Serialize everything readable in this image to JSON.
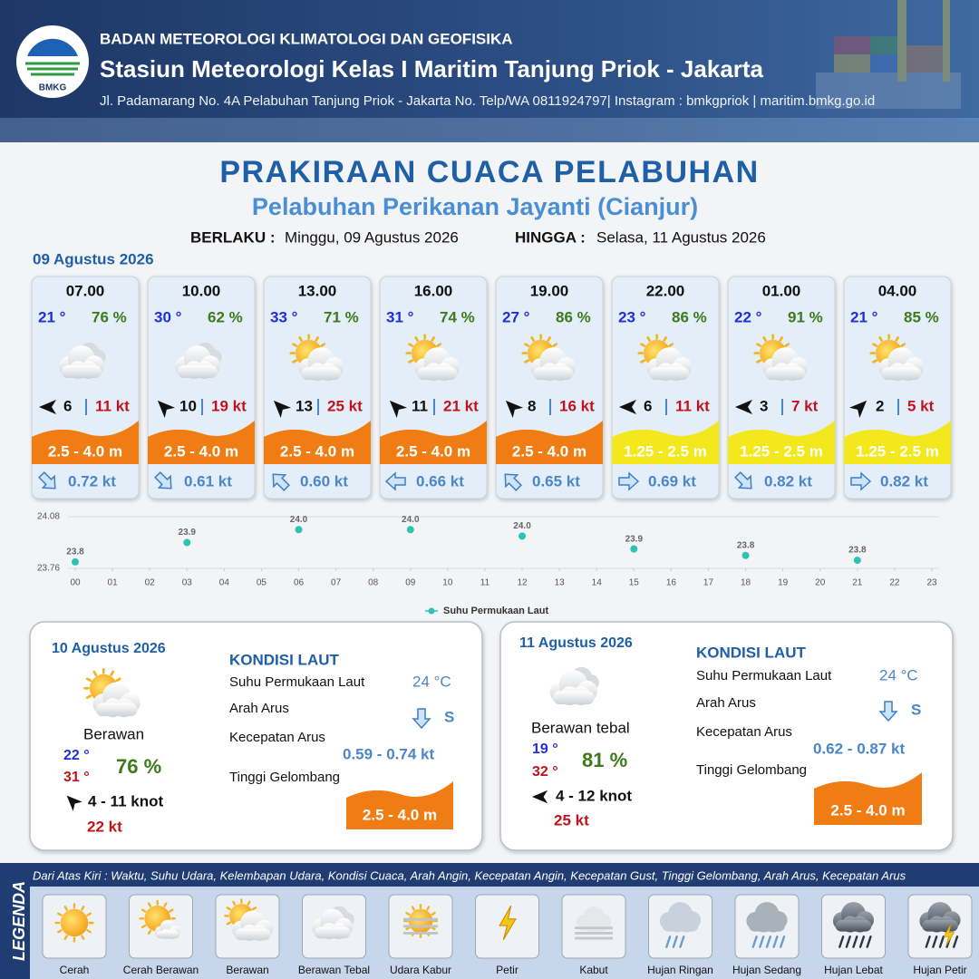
{
  "header": {
    "agency": "BADAN METEOROLOGI KLIMATOLOGI DAN GEOFISIKA",
    "station": "Stasiun Meteorologi Kelas I Maritim Tanjung Priok - Jakarta",
    "address": "Jl. Padamarang No. 4A Pelabuhan Tanjung Priok - Jakarta No. Telp/WA 0811924797| Instagram : bmkgpriok | maritim.bmkg.go.id",
    "logo_text": "BMKG"
  },
  "title": "PRAKIRAAN CUACA PELABUHAN",
  "subtitle": "Pelabuhan Perikanan Jayanti (Cianjur)",
  "valid_from_label": "BERLAKU :",
  "valid_from": "Minggu, 09 Agustus 2026",
  "valid_to_label": "HINGGA :",
  "valid_to": "Selasa, 11 Agustus 2026",
  "date": "09 Agustus 2026",
  "forecasts": [
    {
      "time": "07.00",
      "temp": "21 °",
      "humidity": "76 %",
      "condition": "Berawan Tebal",
      "wind": 6,
      "wind_arrow_deg": 270,
      "gust": "11 kt",
      "wave": "2.5 - 4.0 m",
      "wave_color": "#f07d13",
      "current": "0.72 kt",
      "current_arrow_deg": 135
    },
    {
      "time": "10.00",
      "temp": "30 °",
      "humidity": "62 %",
      "condition": "Berawan Tebal",
      "wind": 10,
      "wind_arrow_deg": 315,
      "gust": "19 kt",
      "wave": "2.5 - 4.0 m",
      "wave_color": "#f07d13",
      "current": "0.61 kt",
      "current_arrow_deg": 135
    },
    {
      "time": "13.00",
      "temp": "33 °",
      "humidity": "71 %",
      "condition": "Berawan",
      "wind": 13,
      "wind_arrow_deg": 315,
      "gust": "25 kt",
      "wave": "2.5 - 4.0 m",
      "wave_color": "#f07d13",
      "current": "0.60 kt",
      "current_arrow_deg": 315
    },
    {
      "time": "16.00",
      "temp": "31 °",
      "humidity": "74 %",
      "condition": "Berawan",
      "wind": 11,
      "wind_arrow_deg": 315,
      "gust": "21 kt",
      "wave": "2.5 - 4.0 m",
      "wave_color": "#f07d13",
      "current": "0.66 kt",
      "current_arrow_deg": 270
    },
    {
      "time": "19.00",
      "temp": "27 °",
      "humidity": "86 %",
      "condition": "Berawan",
      "wind": 8,
      "wind_arrow_deg": 315,
      "gust": "16 kt",
      "wave": "2.5 - 4.0 m",
      "wave_color": "#f07d13",
      "current": "0.65 kt",
      "current_arrow_deg": 315
    },
    {
      "time": "22.00",
      "temp": "23 °",
      "humidity": "86 %",
      "condition": "Berawan",
      "wind": 6,
      "wind_arrow_deg": 270,
      "gust": "11 kt",
      "wave": "1.25 - 2.5 m",
      "wave_color": "#f2e81c",
      "current": "0.69 kt",
      "current_arrow_deg": 90
    },
    {
      "time": "01.00",
      "temp": "22 °",
      "humidity": "91 %",
      "condition": "Berawan",
      "wind": 3,
      "wind_arrow_deg": 270,
      "gust": "7 kt",
      "wave": "1.25 - 2.5 m",
      "wave_color": "#f2e81c",
      "current": "0.82 kt",
      "current_arrow_deg": 135
    },
    {
      "time": "04.00",
      "temp": "21 °",
      "humidity": "85 %",
      "condition": "Berawan",
      "wind": 2,
      "wind_arrow_deg": 45,
      "gust": "5 kt",
      "wave": "1.25 - 2.5 m",
      "wave_color": "#f2e81c",
      "current": "0.82 kt",
      "current_arrow_deg": 90
    }
  ],
  "chart_data": {
    "type": "scatter",
    "xlim": [
      0,
      23
    ],
    "xticks": [
      {
        "value": 0,
        "label": "00"
      },
      {
        "value": 1,
        "label": "01"
      },
      {
        "value": 2,
        "label": "02"
      },
      {
        "value": 3,
        "label": "03"
      },
      {
        "value": 4,
        "label": "04"
      },
      {
        "value": 5,
        "label": "05"
      },
      {
        "value": 6,
        "label": "06"
      },
      {
        "value": 7,
        "label": "07"
      },
      {
        "value": 8,
        "label": "08"
      },
      {
        "value": 9,
        "label": "09"
      },
      10,
      11,
      12,
      13,
      14,
      15,
      16,
      17,
      18,
      19,
      20,
      21,
      22,
      23
    ],
    "ylim": [
      23.76,
      24.08
    ],
    "yticks": [
      23.76,
      24.08
    ],
    "grid": true,
    "legend": "bottom",
    "series": [
      {
        "name": "Suhu Permukaan Laut",
        "color": "#2cc3b5",
        "x": [
          0,
          3,
          6,
          9,
          12,
          15,
          18,
          21
        ],
        "values": [
          23.8,
          23.92,
          24.0,
          24.0,
          23.96,
          23.88,
          23.84,
          23.81
        ],
        "value_labels": [
          "23.8",
          "23.9",
          "24.0",
          "24.0",
          "24.0",
          "23.9",
          "23.8",
          "23.8"
        ]
      }
    ]
  },
  "sea_labels": {
    "title": "KONDISI LAUT",
    "sst": "Suhu Permukaan Laut",
    "current_dir": "Arah Arus",
    "current_speed": "Kecepatan Arus",
    "wave": "Tinggi Gelombang"
  },
  "days": [
    {
      "date": "10 Agustus 2026",
      "condition": "Berawan",
      "temp_min": "22 °",
      "temp_max": "31 °",
      "humidity": "76 %",
      "wind": "4 - 11 knot",
      "wind_arrow_deg": 315,
      "gust": "22 kt",
      "sst": "24 °C",
      "current_arrow_deg": 180,
      "current_dir": "S",
      "current_speed": "0.59 - 0.74 kt",
      "wave": "2.5 - 4.0 m",
      "wave_color": "#f07d13"
    },
    {
      "date": "11 Agustus 2026",
      "condition": "Berawan tebal",
      "temp_min": "19 °",
      "temp_max": "32 °",
      "humidity": "81 %",
      "wind": "4 - 12 knot",
      "wind_arrow_deg": 270,
      "gust": "25 kt",
      "sst": "24 °C",
      "current_arrow_deg": 180,
      "current_dir": "S",
      "current_speed": "0.62 - 0.87 kt",
      "wave": "2.5 - 4.0 m",
      "wave_color": "#f07d13"
    }
  ],
  "legend": {
    "title": "LEGENDA",
    "description": "Dari Atas Kiri : Waktu, Suhu Udara, Kelembapan Udara, Kondisi Cuaca, Arah Angin, Kecepatan Angin, Kecepatan Gust, Tinggi Gelombang, Arah Arus, Kecepatan Arus",
    "items": [
      "Cerah",
      "Cerah Berawan",
      "Berawan",
      "Berawan Tebal",
      "Udara Kabur",
      "Petir",
      "Kabut",
      "Hujan Ringan",
      "Hujan Sedang",
      "Hujan Lebat",
      "Hujan Petir"
    ]
  }
}
